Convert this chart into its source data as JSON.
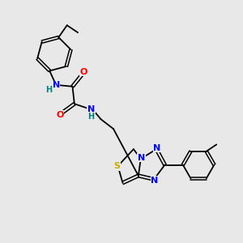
{
  "background_color": "#e8e8e8",
  "bond_color": "#000000",
  "atom_colors": {
    "N": "#0000ff",
    "O": "#ff0000",
    "S": "#ccaa00",
    "H": "#008080",
    "C": "#000000"
  },
  "font_size_atom": 8,
  "fig_size": [
    3.0,
    3.0
  ],
  "dpi": 100
}
